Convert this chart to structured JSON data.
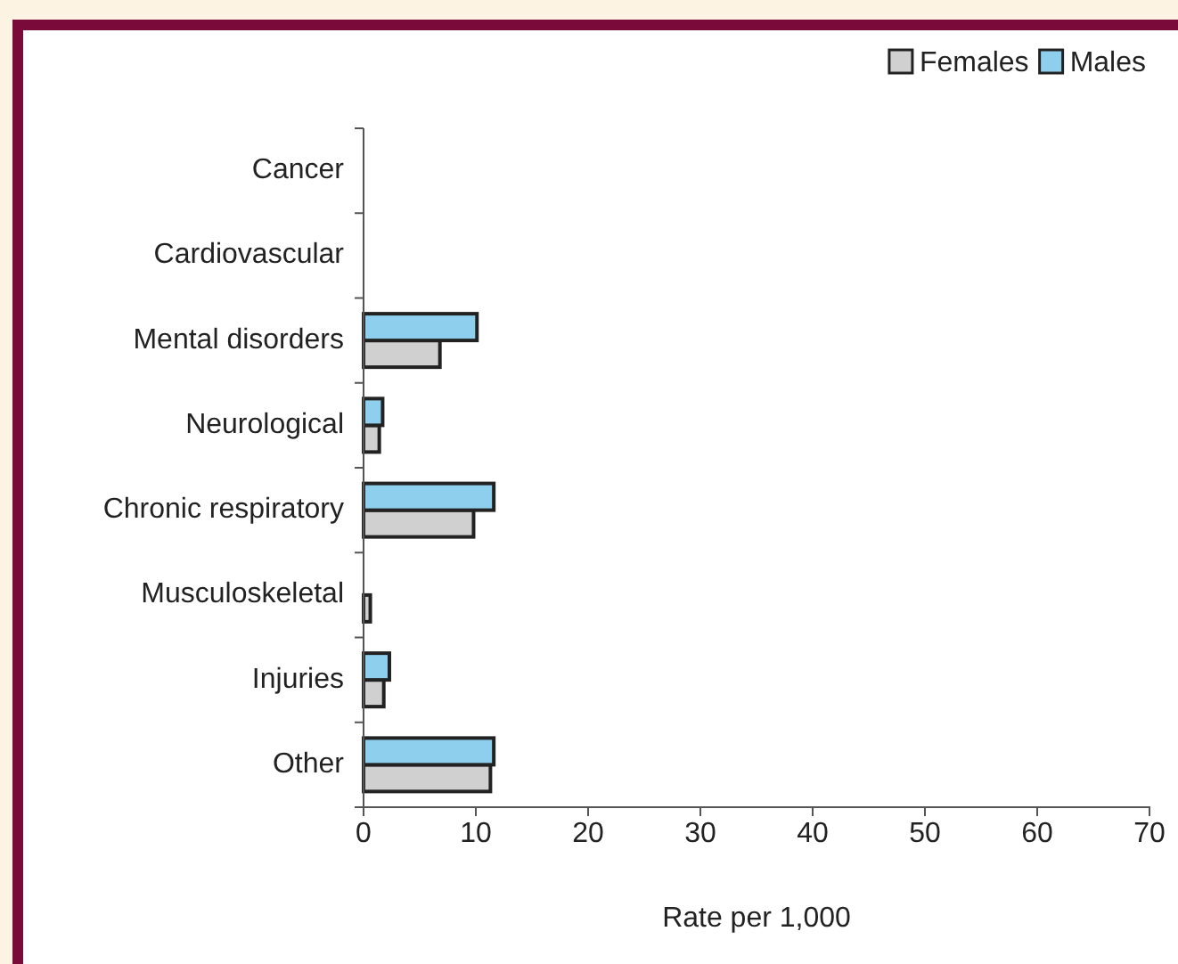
{
  "chart_data": {
    "type": "bar",
    "orientation": "horizontal",
    "categories": [
      "Cancer",
      "Cardiovascular",
      "Mental disorders",
      "Neurological",
      "Chronic respiratory",
      "Musculoskeletal",
      "Injuries",
      "Other"
    ],
    "series": [
      {
        "name": "Females",
        "color": "#d0d0d0",
        "values": [
          0,
          0,
          6.8,
          1.4,
          9.8,
          0.6,
          1.8,
          11.3
        ]
      },
      {
        "name": "Males",
        "color": "#8ecfee",
        "values": [
          0,
          0,
          10.1,
          1.7,
          11.6,
          0,
          2.3,
          11.6
        ]
      }
    ],
    "xlabel": "Rate per 1,000",
    "xlim": [
      0,
      70
    ],
    "xticks": [
      0,
      10,
      20,
      30,
      40,
      50,
      60,
      70
    ],
    "legend": "top right",
    "grid": false
  }
}
